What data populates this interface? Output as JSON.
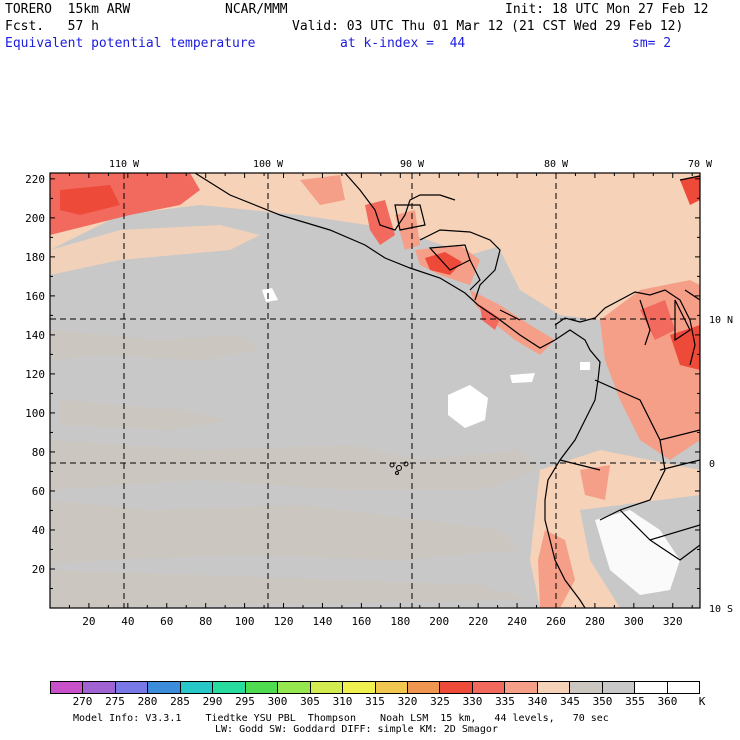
{
  "header": {
    "model": "TORERO  15km ARW",
    "org": "NCAR/MMM",
    "init": "Init: 18 UTC Mon 27 Feb 12",
    "fcst": "Fcst.   57 h",
    "valid": "Valid: 03 UTC Thu 01 Mar 12 (21 CST Wed 29 Feb 12)",
    "field": "Equivalent potential temperature",
    "level": "at k-index =  44",
    "smooth": "sm= 2"
  },
  "map": {
    "lon_labels": [
      "110 W",
      "100 W",
      "90 W",
      "80 W",
      "70 W"
    ],
    "lat_labels": [
      "10 N",
      "0",
      "10 S"
    ],
    "x_ticks": [
      "20",
      "40",
      "60",
      "80",
      "100",
      "120",
      "140",
      "160",
      "180",
      "200",
      "220",
      "240",
      "260",
      "280",
      "300",
      "320"
    ],
    "y_ticks": [
      "220",
      "200",
      "180",
      "160",
      "140",
      "120",
      "100",
      "80",
      "60",
      "40",
      "20"
    ]
  },
  "colorbar": {
    "labels": [
      "270",
      "275",
      "280",
      "285",
      "290",
      "295",
      "300",
      "305",
      "310",
      "315",
      "320",
      "325",
      "330",
      "335",
      "340",
      "345",
      "350",
      "355",
      "360"
    ],
    "unit": "K",
    "colors": [
      "#c850c8",
      "#a064d2",
      "#7878e6",
      "#3c8cdc",
      "#28c8c8",
      "#28dca0",
      "#50dc50",
      "#96e650",
      "#d2eb50",
      "#f0f050",
      "#f0c850",
      "#f09650",
      "#ee4a3a",
      "#f26a5e",
      "#f59e88",
      "#f5d2b8",
      "#ccc6c0",
      "#c8c8c8",
      "#ffffff",
      "#ffffff"
    ]
  },
  "footer": {
    "line1": "Model Info: V3.3.1    Tiedtke YSU PBL  Thompson    Noah LSM  15 km,   44 levels,   70 sec",
    "line2": "LW: Godd SW: Goddard DIFF: simple KM: 2D Smagor"
  }
}
